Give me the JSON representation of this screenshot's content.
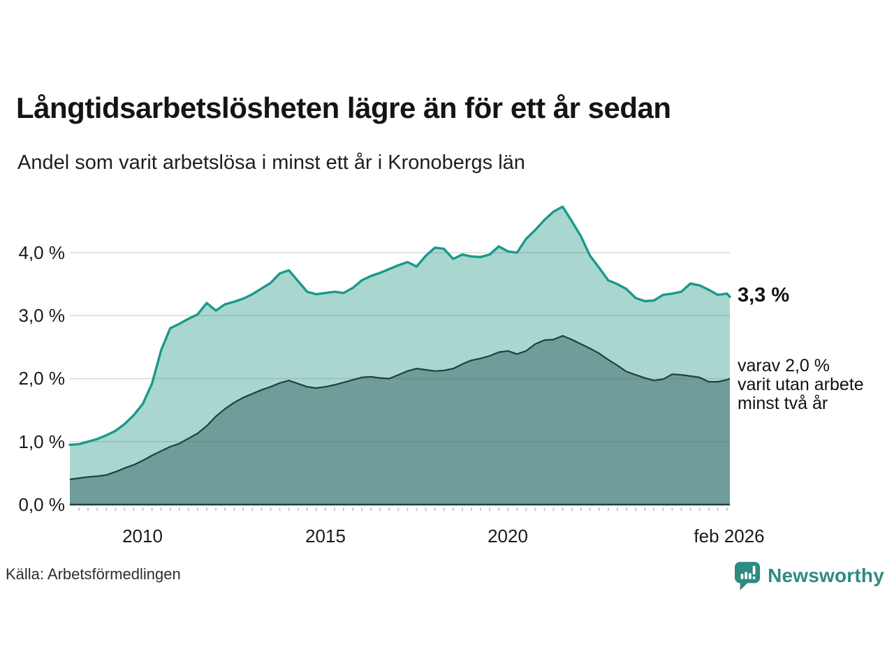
{
  "header": {
    "title": "Långtidsarbetslösheten lägre än för ett år sedan",
    "subtitle": "Andel som varit arbetslösa i minst ett år i Kronobergs län"
  },
  "chart_data": {
    "type": "area",
    "title": "Långtidsarbetslösheten lägre än för ett år sedan",
    "subtitle": "Andel som varit arbetslösa i minst ett år i Kronobergs län",
    "x_unit": "decimal_year",
    "xlim": [
      2008.0,
      2026.08
    ],
    "ylim": [
      0,
      4.8
    ],
    "grid": "horizontal",
    "x": [
      2008.0,
      2008.25,
      2008.5,
      2008.75,
      2009.0,
      2009.25,
      2009.5,
      2009.75,
      2010.0,
      2010.25,
      2010.5,
      2010.75,
      2011.0,
      2011.25,
      2011.5,
      2011.75,
      2012.0,
      2012.25,
      2012.5,
      2012.75,
      2013.0,
      2013.25,
      2013.5,
      2013.75,
      2014.0,
      2014.25,
      2014.5,
      2014.75,
      2015.0,
      2015.25,
      2015.5,
      2015.75,
      2016.0,
      2016.25,
      2016.5,
      2016.75,
      2017.0,
      2017.25,
      2017.5,
      2017.75,
      2018.0,
      2018.25,
      2018.5,
      2018.75,
      2019.0,
      2019.25,
      2019.5,
      2019.75,
      2020.0,
      2020.25,
      2020.5,
      2020.75,
      2021.0,
      2021.25,
      2021.5,
      2021.75,
      2022.0,
      2022.25,
      2022.5,
      2022.75,
      2023.0,
      2023.25,
      2023.5,
      2023.75,
      2024.0,
      2024.25,
      2024.5,
      2024.75,
      2025.0,
      2025.25,
      2025.5,
      2025.75,
      2026.0,
      2026.08
    ],
    "series": [
      {
        "name": "Andel som varit arbetslösa i minst ett år",
        "line_color": "#189a8c",
        "fill_color": "#a9d7d0",
        "end_value_label": "3,3 %",
        "values": [
          0.95,
          0.96,
          1.0,
          1.04,
          1.1,
          1.17,
          1.28,
          1.42,
          1.6,
          1.92,
          2.45,
          2.8,
          2.87,
          2.95,
          3.02,
          3.2,
          3.08,
          3.18,
          3.22,
          3.27,
          3.34,
          3.43,
          3.52,
          3.67,
          3.72,
          3.55,
          3.38,
          3.34,
          3.36,
          3.38,
          3.36,
          3.44,
          3.56,
          3.63,
          3.68,
          3.74,
          3.8,
          3.85,
          3.78,
          3.95,
          4.08,
          4.06,
          3.9,
          3.97,
          3.94,
          3.93,
          3.97,
          4.1,
          4.02,
          4.0,
          4.22,
          4.36,
          4.52,
          4.65,
          4.73,
          4.5,
          4.26,
          3.95,
          3.76,
          3.56,
          3.5,
          3.42,
          3.28,
          3.23,
          3.24,
          3.33,
          3.35,
          3.38,
          3.51,
          3.48,
          3.41,
          3.33,
          3.35,
          3.3
        ]
      },
      {
        "name": "varav utan arbete minst två år",
        "line_color": "#22403b",
        "fill_color": "#6f9d99",
        "end_value_label": "2,0 %",
        "values": [
          0.4,
          0.42,
          0.44,
          0.45,
          0.47,
          0.52,
          0.58,
          0.63,
          0.7,
          0.78,
          0.85,
          0.92,
          0.97,
          1.05,
          1.13,
          1.25,
          1.4,
          1.52,
          1.62,
          1.7,
          1.76,
          1.82,
          1.87,
          1.93,
          1.97,
          1.92,
          1.87,
          1.85,
          1.87,
          1.9,
          1.94,
          1.98,
          2.02,
          2.03,
          2.01,
          2.0,
          2.06,
          2.12,
          2.16,
          2.14,
          2.12,
          2.13,
          2.16,
          2.23,
          2.29,
          2.32,
          2.36,
          2.42,
          2.44,
          2.39,
          2.44,
          2.55,
          2.61,
          2.62,
          2.68,
          2.62,
          2.55,
          2.48,
          2.4,
          2.3,
          2.21,
          2.11,
          2.06,
          2.01,
          1.97,
          1.99,
          2.07,
          2.06,
          2.04,
          2.02,
          1.95,
          1.95,
          1.98,
          2.0
        ]
      }
    ],
    "yticks": [
      {
        "value": 0,
        "label": "0,0 %"
      },
      {
        "value": 1,
        "label": "1,0 %"
      },
      {
        "value": 2,
        "label": "2,0 %"
      },
      {
        "value": 3,
        "label": "3,0 %"
      },
      {
        "value": 4,
        "label": "4,0 %"
      }
    ],
    "xticks": [
      {
        "value": 2010,
        "label": "2010"
      },
      {
        "value": 2015,
        "label": "2015"
      },
      {
        "value": 2020,
        "label": "2020"
      },
      {
        "value": 2026.08,
        "label": "feb 2026"
      }
    ],
    "annotations": {
      "total_end_label": "3,3 %",
      "two_year_lines": [
        "varav 2,0 %",
        "varit utan arbete",
        "minst två år"
      ]
    }
  },
  "footer": {
    "source": "Källa: Arbetsförmedlingen",
    "brand": "Newsworthy"
  },
  "colors": {
    "total_line": "#189a8c",
    "total_fill": "#a9d7d0",
    "two_year_line": "#22403b",
    "two_year_fill": "#6f9d99",
    "gridline": "#dcdcdc",
    "baseline": "#22403b",
    "brand_teal": "#2e8a83"
  }
}
